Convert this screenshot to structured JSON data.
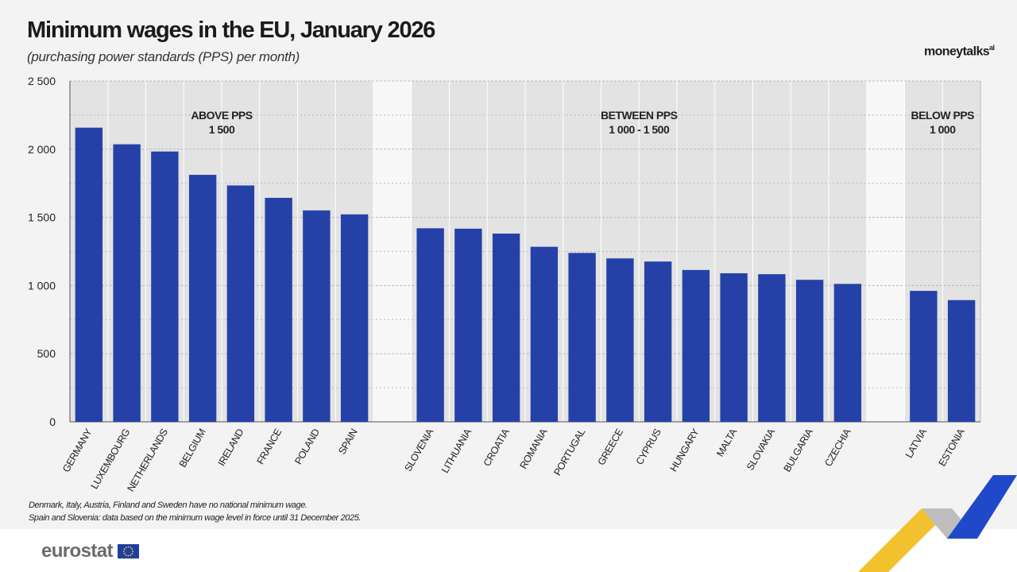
{
  "title": "Minimum wages in the EU, January 2026",
  "subtitle": "(purchasing power standards (PPS) per month)",
  "brand": {
    "name": "moneytalks",
    "suffix": "al"
  },
  "colors": {
    "bar": "#2541a8",
    "background": "#f3f3f3",
    "panel": "#e3e3e3",
    "gap_panel": "#f7f7f7",
    "grid": "#b9b9b9",
    "accent_yellow": "#f2c12e",
    "accent_blue": "#1f49c9",
    "accent_grey": "#bdbdbd"
  },
  "chart_data": {
    "type": "bar",
    "ylim": [
      0,
      2500
    ],
    "yticks": [
      0,
      500,
      1000,
      1500,
      2000,
      2500
    ],
    "ytick_labels": [
      "0",
      "500",
      "1 000",
      "1 500",
      "2 000",
      "2 500"
    ],
    "grid": true,
    "groups": [
      {
        "label_line1": "ABOVE PPS",
        "label_line2": "1 500",
        "categories": [
          "GERMANY",
          "LUXEMBOURG",
          "NETHERLANDS",
          "BELGIUM",
          "IRELAND",
          "FRANCE",
          "POLAND",
          "SPAIN"
        ],
        "values": [
          2158,
          2036,
          1983,
          1812,
          1734,
          1643,
          1551,
          1522
        ]
      },
      {
        "label_line1": "BETWEEN PPS",
        "label_line2": "1 000 - 1 500",
        "categories": [
          "SLOVENIA",
          "LITHUANIA",
          "CROATIA",
          "ROMANIA",
          "PORTUGAL",
          "GREECE",
          "CYPRUS",
          "HUNGARY",
          "MALTA",
          "SLOVAKIA",
          "BULGARIA",
          "CZECHIA"
        ],
        "values": [
          1420,
          1417,
          1381,
          1284,
          1239,
          1199,
          1176,
          1114,
          1090,
          1083,
          1042,
          1012
        ]
      },
      {
        "label_line1": "BELOW PPS",
        "label_line2": "1 000",
        "categories": [
          "LATVIA",
          "ESTONIA"
        ],
        "values": [
          961,
          893
        ]
      }
    ]
  },
  "footnotes": [
    "Denmark, Italy, Austria, Finland and Sweden have no national minimum wage.",
    "Spain and Slovenia: data based on the minimum wage level in force until 31 December 2025."
  ],
  "footer": {
    "logo_text": "eurostat",
    "flag_icon": "eu-flag-icon"
  }
}
